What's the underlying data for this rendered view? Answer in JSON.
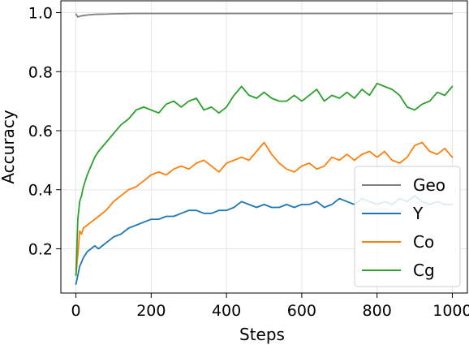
{
  "chart_data": {
    "type": "line",
    "title": "",
    "xlabel": "Steps",
    "ylabel": "Accuracy",
    "xlim": [
      -40,
      1040
    ],
    "ylim": [
      0.05,
      1.04
    ],
    "xticks": [
      0,
      200,
      400,
      600,
      800,
      1000
    ],
    "yticks": [
      0.2,
      0.4,
      0.6,
      0.8,
      1.0
    ],
    "xtick_labels": [
      "0",
      "200",
      "400",
      "600",
      "800",
      "1000"
    ],
    "ytick_labels": [
      "0.2",
      "0.4",
      "0.6",
      "0.8",
      "1.0"
    ],
    "grid": true,
    "legend_position": "lower-right",
    "series": [
      {
        "name": "Geo",
        "color": "#7f7f7f",
        "x": [
          0,
          5,
          10,
          20,
          30,
          50,
          80,
          100,
          150,
          200,
          300,
          400,
          500,
          600,
          700,
          800,
          900,
          1000
        ],
        "y": [
          0.995,
          0.985,
          0.988,
          0.99,
          0.992,
          0.994,
          0.995,
          0.996,
          0.997,
          0.997,
          0.997,
          0.997,
          0.997,
          0.997,
          0.997,
          0.997,
          0.997,
          0.997
        ]
      },
      {
        "name": "Y",
        "color": "#1f77b4",
        "x": [
          0,
          5,
          10,
          20,
          30,
          40,
          50,
          60,
          80,
          100,
          120,
          140,
          160,
          180,
          200,
          220,
          240,
          260,
          280,
          300,
          320,
          340,
          360,
          380,
          400,
          420,
          440,
          460,
          480,
          500,
          520,
          540,
          560,
          580,
          600,
          620,
          640,
          660,
          680,
          700,
          720,
          740,
          760,
          780,
          800,
          820,
          840,
          860,
          880,
          900,
          920,
          940,
          960,
          980,
          1000
        ],
        "y": [
          0.08,
          0.11,
          0.14,
          0.17,
          0.19,
          0.2,
          0.21,
          0.2,
          0.22,
          0.24,
          0.25,
          0.27,
          0.28,
          0.29,
          0.3,
          0.3,
          0.31,
          0.31,
          0.32,
          0.33,
          0.33,
          0.32,
          0.32,
          0.33,
          0.33,
          0.34,
          0.36,
          0.35,
          0.34,
          0.35,
          0.34,
          0.34,
          0.35,
          0.34,
          0.35,
          0.35,
          0.36,
          0.34,
          0.35,
          0.37,
          0.36,
          0.35,
          0.37,
          0.36,
          0.35,
          0.36,
          0.35,
          0.37,
          0.36,
          0.38,
          0.36,
          0.35,
          0.36,
          0.35,
          0.35
        ]
      },
      {
        "name": "Co",
        "color": "#ff7f0e",
        "x": [
          0,
          5,
          10,
          15,
          20,
          30,
          40,
          50,
          60,
          80,
          100,
          120,
          140,
          160,
          180,
          200,
          220,
          240,
          260,
          280,
          300,
          320,
          340,
          360,
          380,
          400,
          420,
          440,
          460,
          480,
          500,
          520,
          540,
          560,
          580,
          600,
          620,
          640,
          660,
          680,
          700,
          720,
          740,
          760,
          780,
          800,
          820,
          840,
          860,
          880,
          900,
          920,
          940,
          960,
          980,
          1000
        ],
        "y": [
          0.11,
          0.18,
          0.26,
          0.25,
          0.27,
          0.28,
          0.29,
          0.3,
          0.31,
          0.33,
          0.36,
          0.38,
          0.4,
          0.41,
          0.43,
          0.45,
          0.46,
          0.45,
          0.47,
          0.48,
          0.47,
          0.49,
          0.5,
          0.48,
          0.46,
          0.49,
          0.5,
          0.51,
          0.5,
          0.53,
          0.56,
          0.52,
          0.49,
          0.47,
          0.46,
          0.48,
          0.49,
          0.47,
          0.48,
          0.51,
          0.5,
          0.52,
          0.5,
          0.52,
          0.53,
          0.51,
          0.53,
          0.5,
          0.49,
          0.51,
          0.55,
          0.56,
          0.53,
          0.52,
          0.54,
          0.51
        ]
      },
      {
        "name": "Cg",
        "color": "#2ca02c",
        "x": [
          0,
          5,
          10,
          15,
          20,
          30,
          40,
          50,
          60,
          80,
          100,
          120,
          140,
          160,
          180,
          200,
          220,
          240,
          260,
          280,
          300,
          320,
          340,
          360,
          380,
          400,
          420,
          440,
          460,
          480,
          500,
          520,
          540,
          560,
          580,
          600,
          620,
          640,
          660,
          680,
          700,
          720,
          740,
          760,
          780,
          800,
          820,
          840,
          860,
          880,
          900,
          920,
          940,
          960,
          980,
          1000
        ],
        "y": [
          0.11,
          0.3,
          0.36,
          0.38,
          0.41,
          0.45,
          0.48,
          0.51,
          0.53,
          0.56,
          0.59,
          0.62,
          0.64,
          0.67,
          0.68,
          0.67,
          0.66,
          0.69,
          0.7,
          0.68,
          0.7,
          0.71,
          0.67,
          0.68,
          0.66,
          0.68,
          0.72,
          0.75,
          0.72,
          0.71,
          0.73,
          0.71,
          0.7,
          0.7,
          0.72,
          0.7,
          0.72,
          0.74,
          0.7,
          0.72,
          0.71,
          0.73,
          0.71,
          0.74,
          0.72,
          0.76,
          0.75,
          0.74,
          0.72,
          0.68,
          0.67,
          0.69,
          0.7,
          0.73,
          0.72,
          0.75
        ]
      }
    ]
  }
}
